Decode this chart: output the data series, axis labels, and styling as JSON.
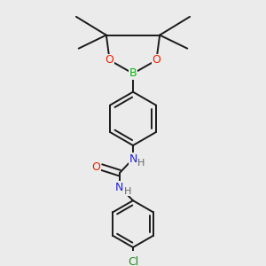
{
  "background_color": "#ebebeb",
  "bond_color": "#1a1a1a",
  "atom_colors": {
    "B": "#00bb00",
    "O": "#ee2200",
    "N": "#2222dd",
    "Cl": "#228822",
    "C": "#1a1a1a",
    "H": "#666666"
  },
  "figsize": [
    3.0,
    3.0
  ],
  "dpi": 100
}
